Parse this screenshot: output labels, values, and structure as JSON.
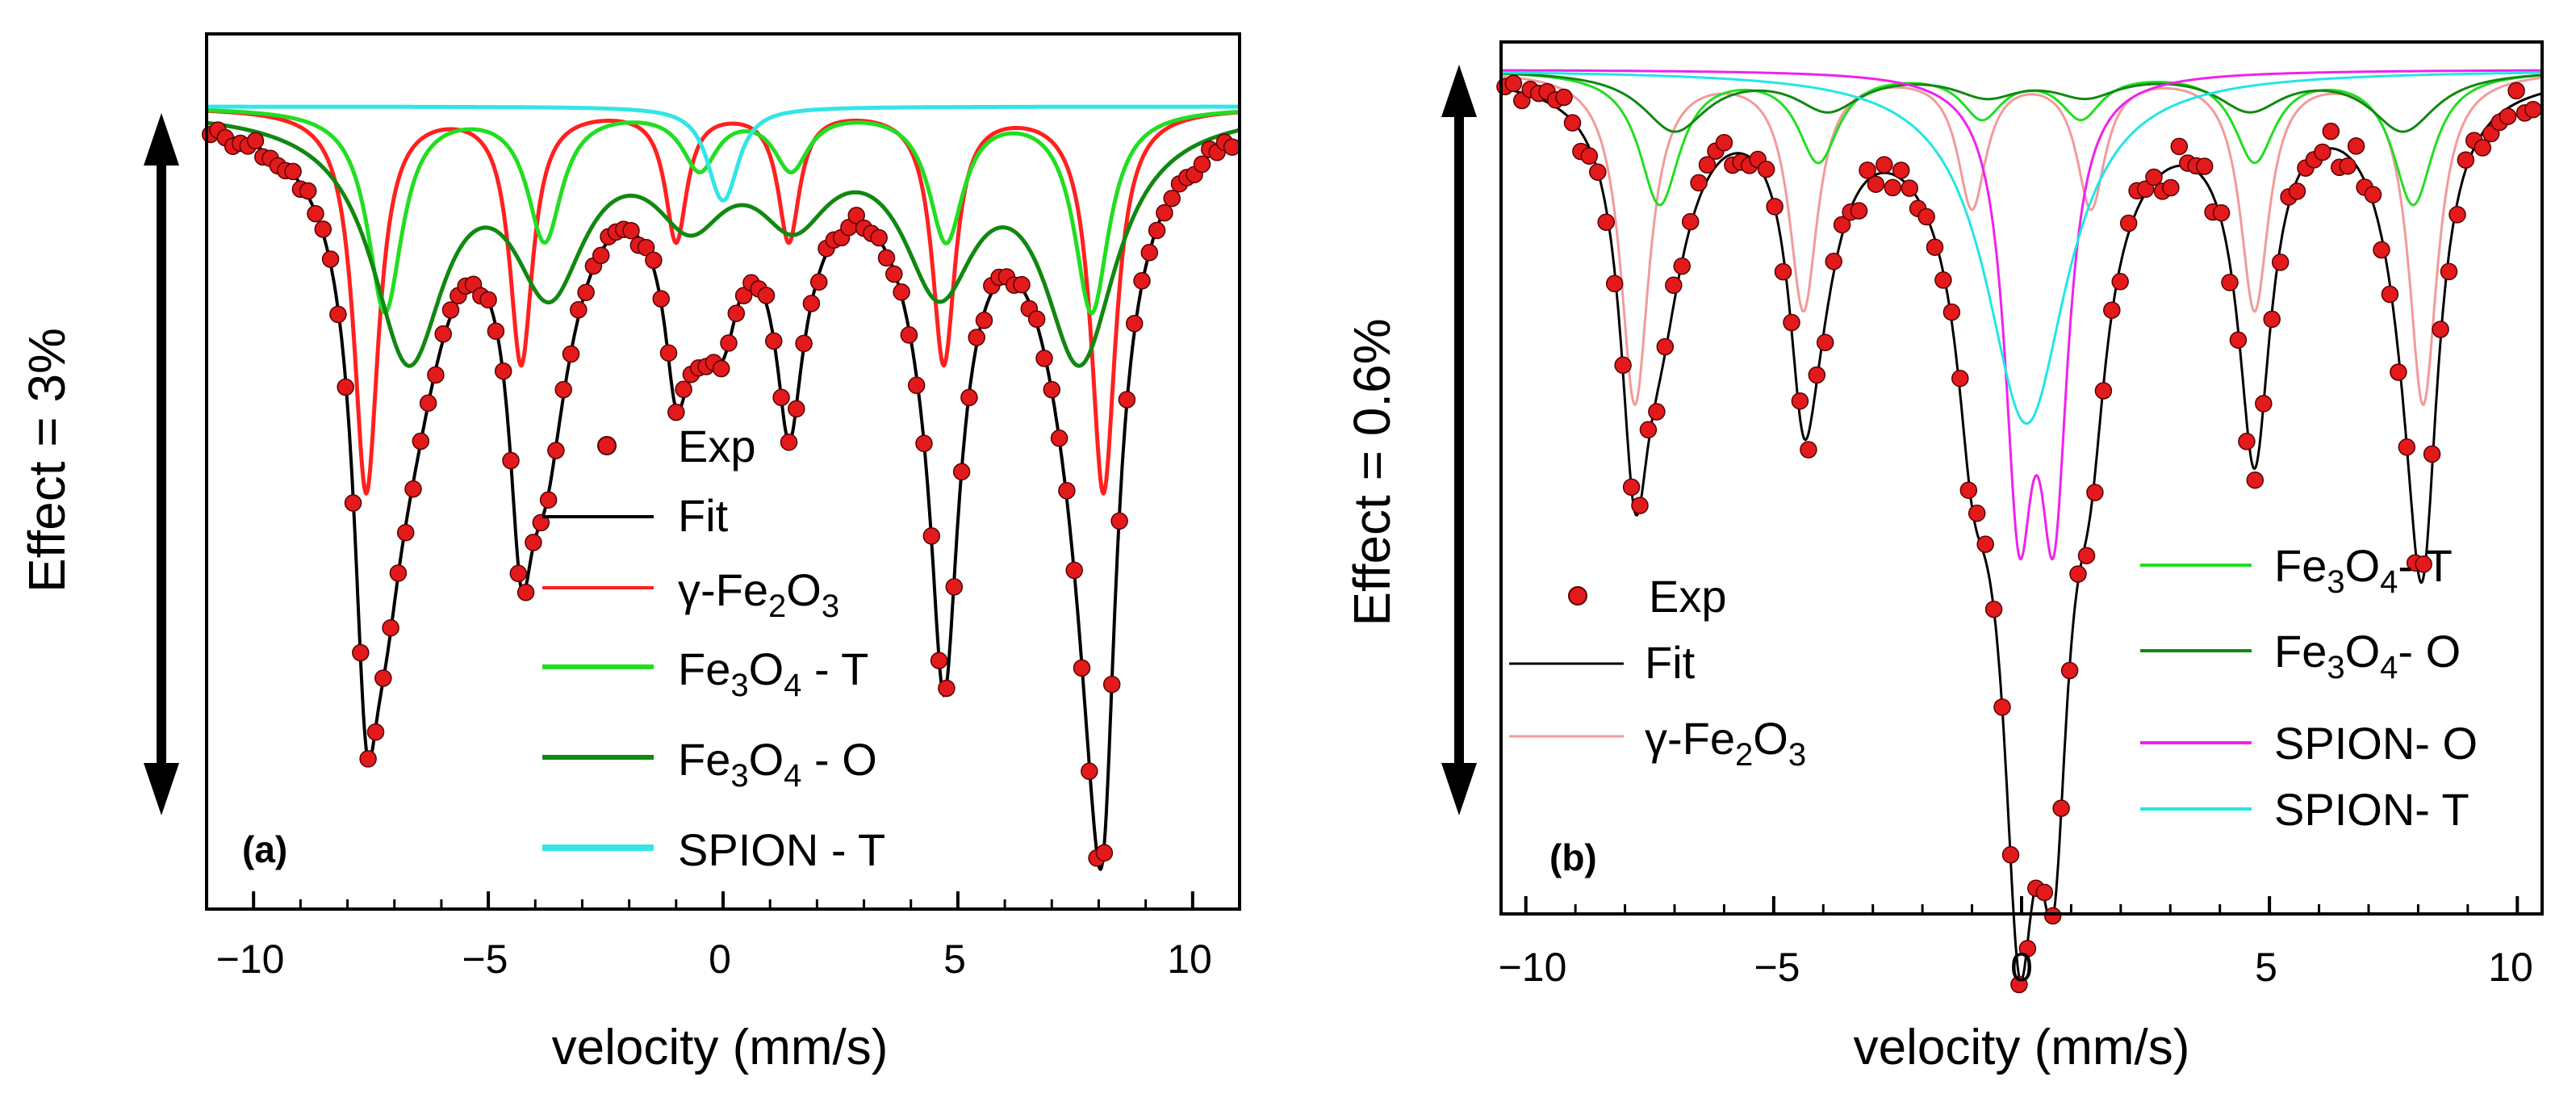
{
  "chart_data": [
    {
      "panel_label": "(a)",
      "type": "line",
      "xlabel": "velocity (mm/s)",
      "ylabel": "Effect = 3%",
      "xlim": [
        -11,
        11
      ],
      "x_ticks": [
        -10,
        -5,
        0,
        5,
        10
      ],
      "x_tick_labels": [
        "−10",
        "−5",
        "0",
        "5",
        "10"
      ],
      "effect_percent": 3,
      "legend_placement": "bottom-center",
      "legend": [
        {
          "key": "exp",
          "label": "Exp",
          "marker": "dot"
        },
        {
          "key": "fit",
          "label": "Fit",
          "marker": "line"
        },
        {
          "key": "gfe2o3",
          "label": "γ-Fe2O3",
          "prefix": "γ-Fe",
          "sub1": "2",
          "mid": "O",
          "sub2": "3",
          "suffix": "",
          "marker": "line"
        },
        {
          "key": "fe3o4_t",
          "label": "Fe3O4 - T",
          "prefix": "Fe",
          "sub1": "3",
          "mid": "O",
          "sub2": "4",
          "suffix": " - T",
          "marker": "line"
        },
        {
          "key": "fe3o4_o",
          "label": "Fe3O4 - O",
          "prefix": "Fe",
          "sub1": "3",
          "mid": "O",
          "sub2": "4",
          "suffix": " - O",
          "marker": "line"
        },
        {
          "key": "spion_t",
          "label": "SPION - T",
          "marker": "line"
        }
      ],
      "series": [
        {
          "key": "gfe2o3",
          "color": "#ff2020",
          "lines": [
            {
              "x": -7.6,
              "depth": 0.53,
              "width": 0.32
            },
            {
              "x": -4.3,
              "depth": 0.35,
              "width": 0.3
            },
            {
              "x": -1.0,
              "depth": 0.18,
              "width": 0.28
            },
            {
              "x": 1.4,
              "depth": 0.18,
              "width": 0.28
            },
            {
              "x": 4.7,
              "depth": 0.35,
              "width": 0.3
            },
            {
              "x": 8.1,
              "depth": 0.53,
              "width": 0.32
            }
          ]
        },
        {
          "key": "fe3o4_t",
          "color": "#22dd22",
          "lines": [
            {
              "x": -7.2,
              "depth": 0.28,
              "width": 0.45
            },
            {
              "x": -3.8,
              "depth": 0.18,
              "width": 0.45
            },
            {
              "x": -0.5,
              "depth": 0.08,
              "width": 0.45
            },
            {
              "x": 1.45,
              "depth": 0.08,
              "width": 0.45
            },
            {
              "x": 4.75,
              "depth": 0.18,
              "width": 0.45
            },
            {
              "x": 7.85,
              "depth": 0.28,
              "width": 0.45
            }
          ]
        },
        {
          "key": "fe3o4_o",
          "color": "#118811",
          "lines": [
            {
              "x": -6.7,
              "depth": 0.33,
              "width": 0.95
            },
            {
              "x": -3.7,
              "depth": 0.22,
              "width": 0.95
            },
            {
              "x": -0.7,
              "depth": 0.12,
              "width": 0.95
            },
            {
              "x": 1.5,
              "depth": 0.12,
              "width": 0.95
            },
            {
              "x": 4.6,
              "depth": 0.22,
              "width": 0.95
            },
            {
              "x": 7.6,
              "depth": 0.33,
              "width": 0.95
            }
          ]
        },
        {
          "key": "spion_t",
          "color": "#33e5e5",
          "lines": [
            {
              "x": -0.1,
              "depth": 0.07,
              "width": 0.35
            },
            {
              "x": 0.1,
              "depth": 0.07,
              "width": 0.35
            }
          ]
        }
      ]
    },
    {
      "panel_label": "(b)",
      "type": "line",
      "xlabel": "velocity (mm/s)",
      "ylabel": "Effect = 0.6%",
      "xlim": [
        -10.5,
        10.5
      ],
      "x_ticks": [
        -10,
        -5,
        0,
        5,
        10
      ],
      "x_tick_labels": [
        "−10",
        "−5",
        "0",
        "5",
        "10"
      ],
      "effect_percent": 0.6,
      "legend_placement": "bottom-left and bottom-right",
      "legend": [
        {
          "key": "exp",
          "label": "Exp",
          "marker": "dot"
        },
        {
          "key": "fit",
          "label": "Fit",
          "marker": "line"
        },
        {
          "key": "gfe2o3",
          "label": "γ-Fe2O3",
          "prefix": "γ-Fe",
          "sub1": "2",
          "mid": "O",
          "sub2": "3",
          "suffix": "",
          "marker": "line"
        },
        {
          "key": "fe3o4_t",
          "label": "Fe3O4- T",
          "prefix": "Fe",
          "sub1": "3",
          "mid": "O",
          "sub2": "4",
          "suffix": "- T",
          "marker": "line"
        },
        {
          "key": "fe3o4_o",
          "label": "Fe3O4- O",
          "prefix": "Fe",
          "sub1": "3",
          "mid": "O",
          "sub2": "4",
          "suffix": "- O",
          "marker": "line"
        },
        {
          "key": "spion_o",
          "label": "SPION- O",
          "marker": "line"
        },
        {
          "key": "spion_t",
          "label": "SPION- T",
          "marker": "line"
        }
      ],
      "series": [
        {
          "key": "gfe2o3",
          "color": "#f29a9a",
          "lines": [
            {
              "x": -7.8,
              "depth": 0.45,
              "width": 0.35
            },
            {
              "x": -4.4,
              "depth": 0.32,
              "width": 0.35
            },
            {
              "x": -1.0,
              "depth": 0.18,
              "width": 0.35
            },
            {
              "x": 1.4,
              "depth": 0.18,
              "width": 0.35
            },
            {
              "x": 4.7,
              "depth": 0.32,
              "width": 0.35
            },
            {
              "x": 8.1,
              "depth": 0.45,
              "width": 0.35
            }
          ]
        },
        {
          "key": "fe3o4_t",
          "color": "#22dd22",
          "lines": [
            {
              "x": -7.3,
              "depth": 0.18,
              "width": 0.5
            },
            {
              "x": -4.1,
              "depth": 0.12,
              "width": 0.5
            },
            {
              "x": -0.8,
              "depth": 0.06,
              "width": 0.5
            },
            {
              "x": 1.2,
              "depth": 0.06,
              "width": 0.5
            },
            {
              "x": 4.7,
              "depth": 0.12,
              "width": 0.5
            },
            {
              "x": 7.9,
              "depth": 0.18,
              "width": 0.5
            }
          ]
        },
        {
          "key": "fe3o4_o",
          "color": "#118811",
          "lines": [
            {
              "x": -7.0,
              "depth": 0.08,
              "width": 0.8
            },
            {
              "x": -3.9,
              "depth": 0.05,
              "width": 0.8
            },
            {
              "x": -0.7,
              "depth": 0.03,
              "width": 0.8
            },
            {
              "x": 1.3,
              "depth": 0.03,
              "width": 0.8
            },
            {
              "x": 4.6,
              "depth": 0.05,
              "width": 0.8
            },
            {
              "x": 7.7,
              "depth": 0.08,
              "width": 0.8
            }
          ]
        },
        {
          "key": "spion_o",
          "color": "#ee22ee",
          "lines": [
            {
              "x": -0.05,
              "depth": 0.55,
              "width": 0.35
            },
            {
              "x": 0.65,
              "depth": 0.55,
              "width": 0.35
            }
          ]
        },
        {
          "key": "spion_t",
          "color": "#22e5e5",
          "lines": [
            {
              "x": 0.1,
              "depth": 0.48,
              "width": 1.0
            }
          ]
        }
      ]
    }
  ]
}
